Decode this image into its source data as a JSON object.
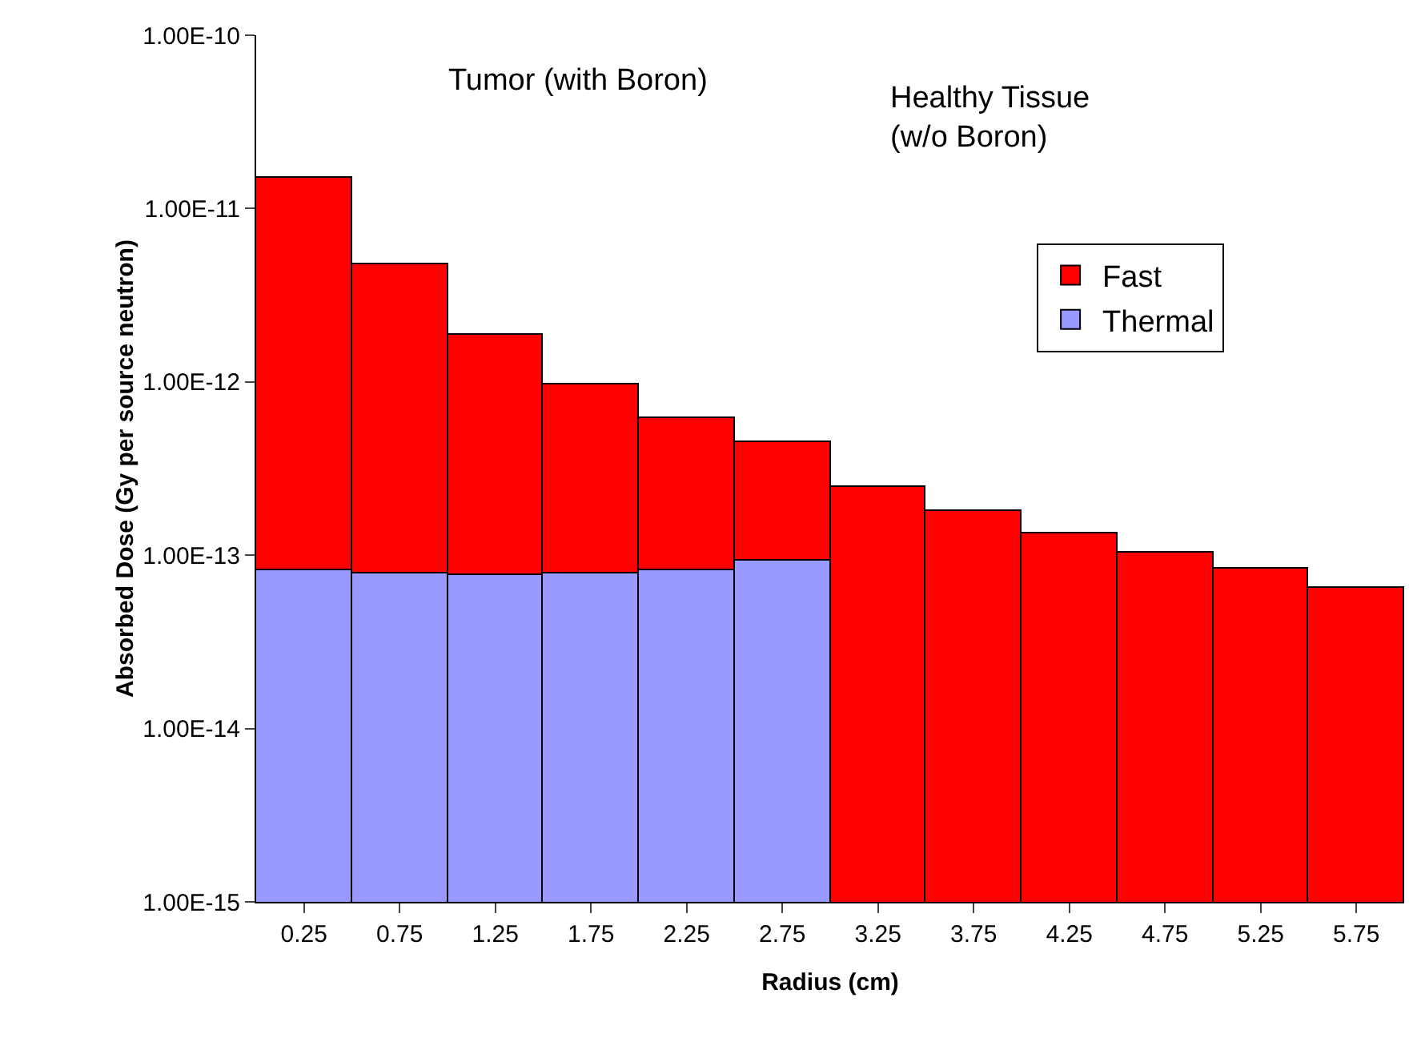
{
  "chart_data": {
    "type": "bar",
    "xlabel": "Radius (cm)",
    "ylabel": "Absorbed Dose (Gy per source neutron)",
    "categories": [
      "0.25",
      "0.75",
      "1.25",
      "1.75",
      "2.25",
      "2.75",
      "3.25",
      "3.75",
      "4.25",
      "4.75",
      "5.25",
      "5.75"
    ],
    "series": [
      {
        "name": "Thermal",
        "color": "#9999ff",
        "values": [
          8.2e-14,
          7.8e-14,
          7.7e-14,
          7.8e-14,
          8.2e-14,
          9.4e-14,
          null,
          null,
          null,
          null,
          null,
          null
        ]
      },
      {
        "name": "Fast",
        "color": "#ff0000",
        "values": [
          1.49e-11,
          4.7e-12,
          1.8e-12,
          8.9e-13,
          5.4e-13,
          3.6e-13,
          2.5e-13,
          1.8e-13,
          1.35e-13,
          1.03e-13,
          8.3e-14,
          6.5e-14
        ]
      }
    ],
    "stacked": true,
    "log": "y",
    "ylim": [
      1e-15,
      1e-10
    ],
    "yticks": [
      {
        "value": 1e-15,
        "label": "1.00E-15"
      },
      {
        "value": 1e-14,
        "label": "1.00E-14"
      },
      {
        "value": 1e-13,
        "label": "1.00E-13"
      },
      {
        "value": 1e-12,
        "label": "1.00E-12"
      },
      {
        "value": 1e-11,
        "label": "1.00E-11"
      },
      {
        "value": 1e-10,
        "label": "1.00E-10"
      }
    ],
    "grid": false,
    "legend": "top right",
    "annotations": [
      "Tumor (with Boron)",
      "Healthy Tissue\n(w/o Boron)"
    ]
  }
}
